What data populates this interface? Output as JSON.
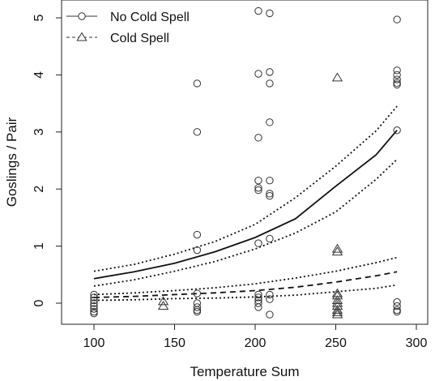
{
  "chart_data": {
    "type": "scatter",
    "title": "",
    "xlabel": "Temperature Sum",
    "ylabel": "Goslings / Pair",
    "xlim": [
      100,
      300
    ],
    "ylim": [
      0,
      5
    ],
    "xticks": [
      100,
      150,
      200,
      250,
      300
    ],
    "yticks": [
      0,
      1,
      2,
      3,
      4,
      5
    ],
    "grid": false,
    "legend_position": "top-left",
    "series": [
      {
        "name": "No Cold Spell",
        "marker": "circle",
        "line_style": "solid",
        "points": [
          [
            100,
            0.15
          ],
          [
            100,
            0.1
          ],
          [
            100,
            0.05
          ],
          [
            100,
            0.0
          ],
          [
            100,
            -0.05
          ],
          [
            100,
            -0.1
          ],
          [
            100,
            -0.15
          ],
          [
            100,
            -0.18
          ],
          [
            164,
            3.85
          ],
          [
            164,
            3.0
          ],
          [
            164,
            1.2
          ],
          [
            164,
            0.93
          ],
          [
            164,
            0.17
          ],
          [
            164,
            0.0
          ],
          [
            164,
            -0.07
          ],
          [
            164,
            -0.12
          ],
          [
            164,
            -0.15
          ],
          [
            202,
            5.12
          ],
          [
            202,
            4.02
          ],
          [
            202,
            2.9
          ],
          [
            202,
            2.15
          ],
          [
            202,
            2.02
          ],
          [
            202,
            1.98
          ],
          [
            202,
            1.05
          ],
          [
            202,
            0.15
          ],
          [
            202,
            0.1
          ],
          [
            202,
            0.05
          ],
          [
            202,
            0.0
          ],
          [
            202,
            -0.07
          ],
          [
            209,
            5.08
          ],
          [
            209,
            4.05
          ],
          [
            209,
            3.85
          ],
          [
            209,
            3.17
          ],
          [
            209,
            2.15
          ],
          [
            209,
            1.92
          ],
          [
            209,
            1.88
          ],
          [
            209,
            1.13
          ],
          [
            209,
            0.15
          ],
          [
            209,
            0.07
          ],
          [
            209,
            -0.2
          ],
          [
            288,
            4.97
          ],
          [
            288,
            4.08
          ],
          [
            288,
            4.0
          ],
          [
            288,
            3.92
          ],
          [
            288,
            3.86
          ],
          [
            288,
            3.83
          ],
          [
            288,
            3.03
          ],
          [
            288,
            0.02
          ],
          [
            288,
            -0.05
          ],
          [
            288,
            -0.12
          ],
          [
            288,
            -0.15
          ]
        ],
        "fit": [
          [
            100,
            0.43
          ],
          [
            125,
            0.55
          ],
          [
            150,
            0.7
          ],
          [
            175,
            0.9
          ],
          [
            200,
            1.15
          ],
          [
            225,
            1.48
          ],
          [
            250,
            2.05
          ],
          [
            275,
            2.6
          ],
          [
            288,
            3.03
          ]
        ],
        "ci_lower": [
          [
            100,
            0.3
          ],
          [
            125,
            0.41
          ],
          [
            150,
            0.56
          ],
          [
            175,
            0.73
          ],
          [
            200,
            0.95
          ],
          [
            225,
            1.23
          ],
          [
            250,
            1.6
          ],
          [
            275,
            2.17
          ],
          [
            288,
            2.52
          ]
        ],
        "ci_upper": [
          [
            100,
            0.56
          ],
          [
            125,
            0.68
          ],
          [
            150,
            0.86
          ],
          [
            175,
            1.08
          ],
          [
            200,
            1.38
          ],
          [
            225,
            1.85
          ],
          [
            250,
            2.4
          ],
          [
            275,
            3.02
          ],
          [
            288,
            3.45
          ]
        ]
      },
      {
        "name": "Cold Spell",
        "marker": "triangle",
        "line_style": "dashed",
        "points": [
          [
            143,
            0.03
          ],
          [
            143,
            -0.05
          ],
          [
            251,
            3.95
          ],
          [
            251,
            0.95
          ],
          [
            251,
            0.9
          ],
          [
            251,
            0.17
          ],
          [
            251,
            0.13
          ],
          [
            251,
            0.05
          ],
          [
            251,
            0.0
          ],
          [
            251,
            -0.05
          ],
          [
            251,
            -0.12
          ],
          [
            251,
            -0.16
          ],
          [
            251,
            -0.2
          ]
        ],
        "fit": [
          [
            100,
            0.1
          ],
          [
            125,
            0.12
          ],
          [
            150,
            0.15
          ],
          [
            175,
            0.18
          ],
          [
            200,
            0.22
          ],
          [
            225,
            0.28
          ],
          [
            250,
            0.37
          ],
          [
            275,
            0.48
          ],
          [
            288,
            0.55
          ]
        ],
        "ci_lower": [
          [
            100,
            0.05
          ],
          [
            125,
            0.06
          ],
          [
            150,
            0.08
          ],
          [
            175,
            0.09
          ],
          [
            200,
            0.11
          ],
          [
            225,
            0.14
          ],
          [
            250,
            0.2
          ],
          [
            275,
            0.26
          ],
          [
            288,
            0.32
          ]
        ],
        "ci_upper": [
          [
            100,
            0.15
          ],
          [
            125,
            0.18
          ],
          [
            150,
            0.22
          ],
          [
            175,
            0.27
          ],
          [
            200,
            0.34
          ],
          [
            225,
            0.44
          ],
          [
            250,
            0.56
          ],
          [
            275,
            0.71
          ],
          [
            288,
            0.8
          ]
        ]
      }
    ]
  }
}
